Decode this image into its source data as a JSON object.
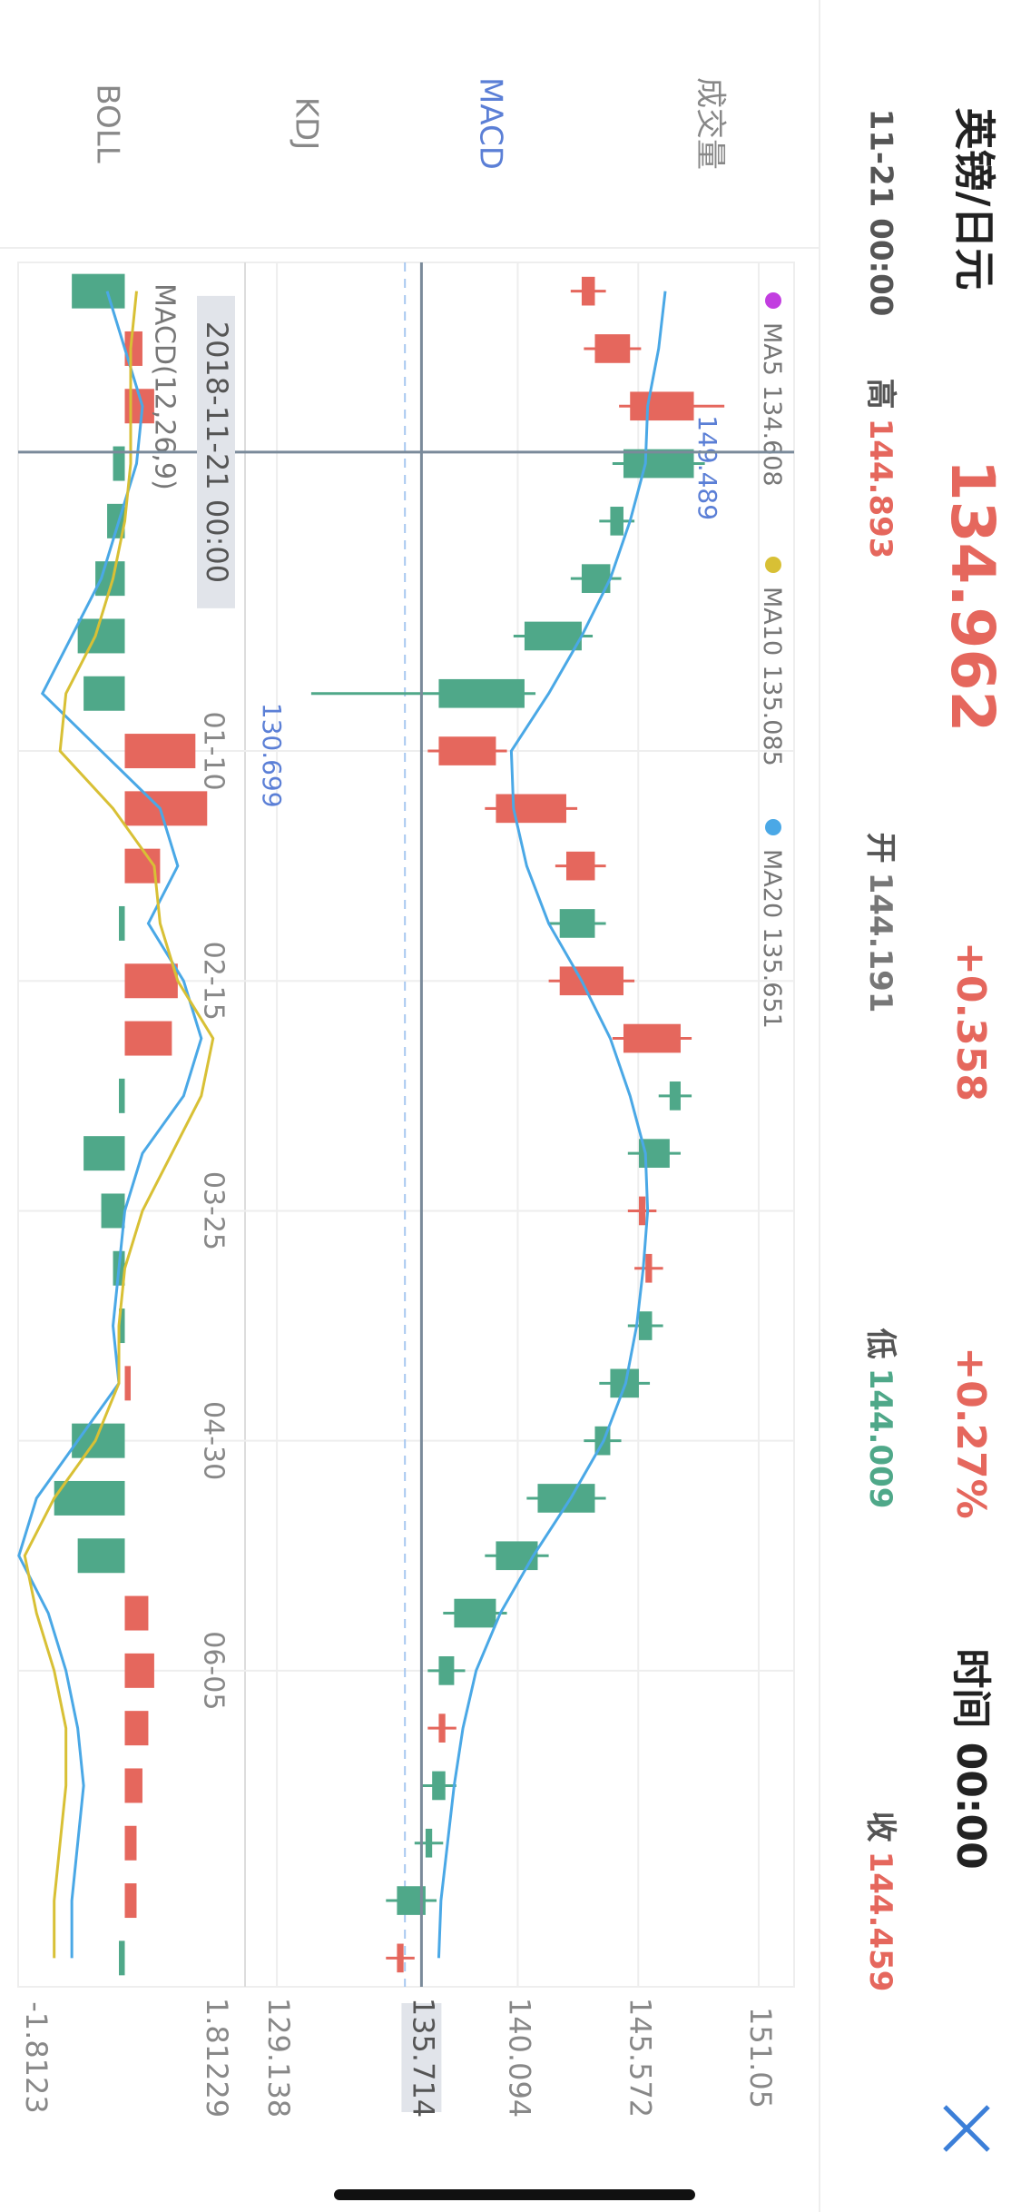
{
  "header": {
    "title": "英镑/日元",
    "price": 134.962,
    "change": "+0.358",
    "change_pct": "+0.27%",
    "time": "时间 00:00"
  },
  "info": {
    "date": "11-21 00:00",
    "items": [
      {
        "label": "高",
        "value": 144.893,
        "color": "#e5675d"
      },
      {
        "label": "开",
        "value": 144.191,
        "color": "#777777"
      },
      {
        "label": "低",
        "value": 144.009,
        "color": "#4fa889"
      },
      {
        "label": "收",
        "value": 144.459,
        "color": "#e5675d"
      }
    ]
  },
  "tabs": [
    "成交量",
    "MACD",
    "KDJ",
    "BOLL"
  ],
  "active_tab": 1,
  "chart_data": [
    {
      "type": "candlestick",
      "up_color": "#e5675d",
      "down_color": "#4fa889",
      "open": [
        143.0,
        143.6,
        145.2,
        148.1,
        144.9,
        144.3,
        143.0,
        140.4,
        136.5,
        139.1,
        142.3,
        143.6,
        142.0,
        144.9,
        147.5,
        147.0,
        145.6,
        145.9,
        146.2,
        145.6,
        144.3,
        143.6,
        141.0,
        139.1,
        137.2,
        136.5,
        136.8,
        136.2,
        135.9,
        134.6
      ],
      "close": [
        143.6,
        145.2,
        148.1,
        144.9,
        144.3,
        143.0,
        140.4,
        136.5,
        139.1,
        142.3,
        143.6,
        142.0,
        144.9,
        147.5,
        147.0,
        145.6,
        145.9,
        146.2,
        145.6,
        144.3,
        143.6,
        141.0,
        139.1,
        137.2,
        136.5,
        136.8,
        136.2,
        135.9,
        134.6,
        134.9
      ],
      "high": [
        144.1,
        145.7,
        149.489,
        148.6,
        145.4,
        144.8,
        143.5,
        140.9,
        139.6,
        142.8,
        144.1,
        144.1,
        145.4,
        148.0,
        148.0,
        147.5,
        146.4,
        146.7,
        146.7,
        146.1,
        144.8,
        144.1,
        141.5,
        139.6,
        137.7,
        137.3,
        137.3,
        136.7,
        136.4,
        135.4
      ],
      "low": [
        142.5,
        143.1,
        144.7,
        144.4,
        143.8,
        142.5,
        139.9,
        130.699,
        136.0,
        138.6,
        141.8,
        141.5,
        141.5,
        144.4,
        146.5,
        145.1,
        145.1,
        145.4,
        145.1,
        143.8,
        143.1,
        140.5,
        138.6,
        136.7,
        136.0,
        136.0,
        135.7,
        135.4,
        134.1,
        134.1
      ],
      "max_index": 2,
      "min_index": 7,
      "indicators": [
        {
          "name": "MA5",
          "value": 134.608,
          "color": "#c23ee0"
        },
        {
          "name": "MA10",
          "value": 135.085,
          "color": "#d8c035"
        },
        {
          "name": "MA20",
          "value": 135.651,
          "color": "#4aa8e6",
          "values": [
            146.8,
            146.5,
            146.0,
            145.9,
            145.2,
            144.3,
            143.0,
            141.5,
            139.8,
            139.9,
            140.5,
            141.5,
            143.0,
            144.3,
            145.2,
            145.9,
            146.0,
            145.8,
            145.5,
            145.0,
            144.0,
            142.5,
            140.8,
            139.3,
            138.2,
            137.6,
            137.2,
            136.9,
            136.6,
            136.5
          ]
        }
      ],
      "xlim": [
        -0.5,
        29.5
      ],
      "xticks": [
        {
          "value": 8,
          "label": "01-10"
        },
        {
          "value": 12,
          "label": "02-15"
        },
        {
          "value": 16,
          "label": "03-25"
        },
        {
          "value": 20,
          "label": "04-30"
        },
        {
          "value": 24,
          "label": "06-05"
        }
      ],
      "ylim": [
        128.31,
        152.66
      ],
      "yticks": [
        129.138,
        140.094,
        145.572,
        151.05
      ],
      "crosshair": {
        "x": 2.8,
        "x_label": "2018-11-21 00:00",
        "y": 135.714
      },
      "grid": true
    },
    {
      "type": "macd",
      "title": "MACD(12,26,9)",
      "up_color": "#e5675d",
      "down_color": "#4fa889",
      "values": [
        -0.9,
        0.3,
        0.5,
        -0.2,
        -0.3,
        -0.5,
        -0.8,
        -0.7,
        1.2,
        1.4,
        0.6,
        -0.1,
        0.9,
        0.8,
        -0.1,
        -0.7,
        -0.4,
        -0.2,
        -0.1,
        0.1,
        -0.9,
        -1.2,
        -0.8,
        0.4,
        0.5,
        0.4,
        0.3,
        0.2,
        0.2,
        -0.1
      ],
      "series": [
        {
          "color": "#4aa8e6",
          "values": [
            -0.3,
            0.0,
            0.3,
            0.2,
            -0.1,
            -0.4,
            -0.9,
            -1.4,
            -0.4,
            0.6,
            0.9,
            0.4,
            1.0,
            1.3,
            1.0,
            0.3,
            0.0,
            -0.1,
            -0.2,
            -0.1,
            -0.8,
            -1.5,
            -1.8,
            -1.3,
            -1.0,
            -0.8,
            -0.7,
            -0.8,
            -0.9,
            -0.9
          ]
        },
        {
          "color": "#d8c035",
          "values": [
            0.2,
            0.1,
            0.1,
            0.1,
            0.0,
            -0.2,
            -0.5,
            -1.0,
            -1.1,
            -0.2,
            0.5,
            0.6,
            0.9,
            1.5,
            1.3,
            0.8,
            0.3,
            0.0,
            -0.1,
            -0.1,
            -0.5,
            -1.2,
            -1.7,
            -1.5,
            -1.2,
            -1.0,
            -1.0,
            -1.1,
            -1.2,
            -1.2
          ]
        }
      ],
      "ylim": [
        -1.8123,
        1.81229
      ],
      "yticks": [
        -1.8123,
        1.81229
      ]
    }
  ]
}
